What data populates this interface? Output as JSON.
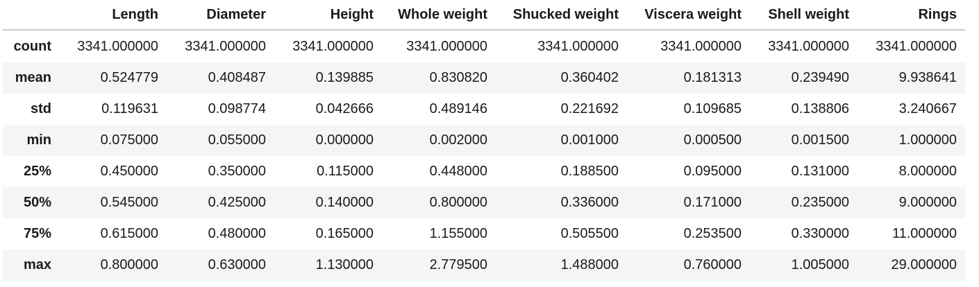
{
  "table": {
    "columns": [
      "",
      "Length",
      "Diameter",
      "Height",
      "Whole weight",
      "Shucked weight",
      "Viscera weight",
      "Shell weight",
      "Rings"
    ],
    "rows": [
      {
        "index": "count",
        "values": [
          "3341.000000",
          "3341.000000",
          "3341.000000",
          "3341.000000",
          "3341.000000",
          "3341.000000",
          "3341.000000",
          "3341.000000"
        ]
      },
      {
        "index": "mean",
        "values": [
          "0.524779",
          "0.408487",
          "0.139885",
          "0.830820",
          "0.360402",
          "0.181313",
          "0.239490",
          "9.938641"
        ]
      },
      {
        "index": "std",
        "values": [
          "0.119631",
          "0.098774",
          "0.042666",
          "0.489146",
          "0.221692",
          "0.109685",
          "0.138806",
          "3.240667"
        ]
      },
      {
        "index": "min",
        "values": [
          "0.075000",
          "0.055000",
          "0.000000",
          "0.002000",
          "0.001000",
          "0.000500",
          "0.001500",
          "1.000000"
        ]
      },
      {
        "index": "25%",
        "values": [
          "0.450000",
          "0.350000",
          "0.115000",
          "0.448000",
          "0.188500",
          "0.095000",
          "0.131000",
          "8.000000"
        ]
      },
      {
        "index": "50%",
        "values": [
          "0.545000",
          "0.425000",
          "0.140000",
          "0.800000",
          "0.336000",
          "0.171000",
          "0.235000",
          "9.000000"
        ]
      },
      {
        "index": "75%",
        "values": [
          "0.615000",
          "0.480000",
          "0.165000",
          "1.155000",
          "0.505500",
          "0.253500",
          "0.330000",
          "11.000000"
        ]
      },
      {
        "index": "max",
        "values": [
          "0.800000",
          "0.630000",
          "1.130000",
          "2.779500",
          "1.488000",
          "0.760000",
          "1.005000",
          "29.000000"
        ]
      }
    ]
  }
}
